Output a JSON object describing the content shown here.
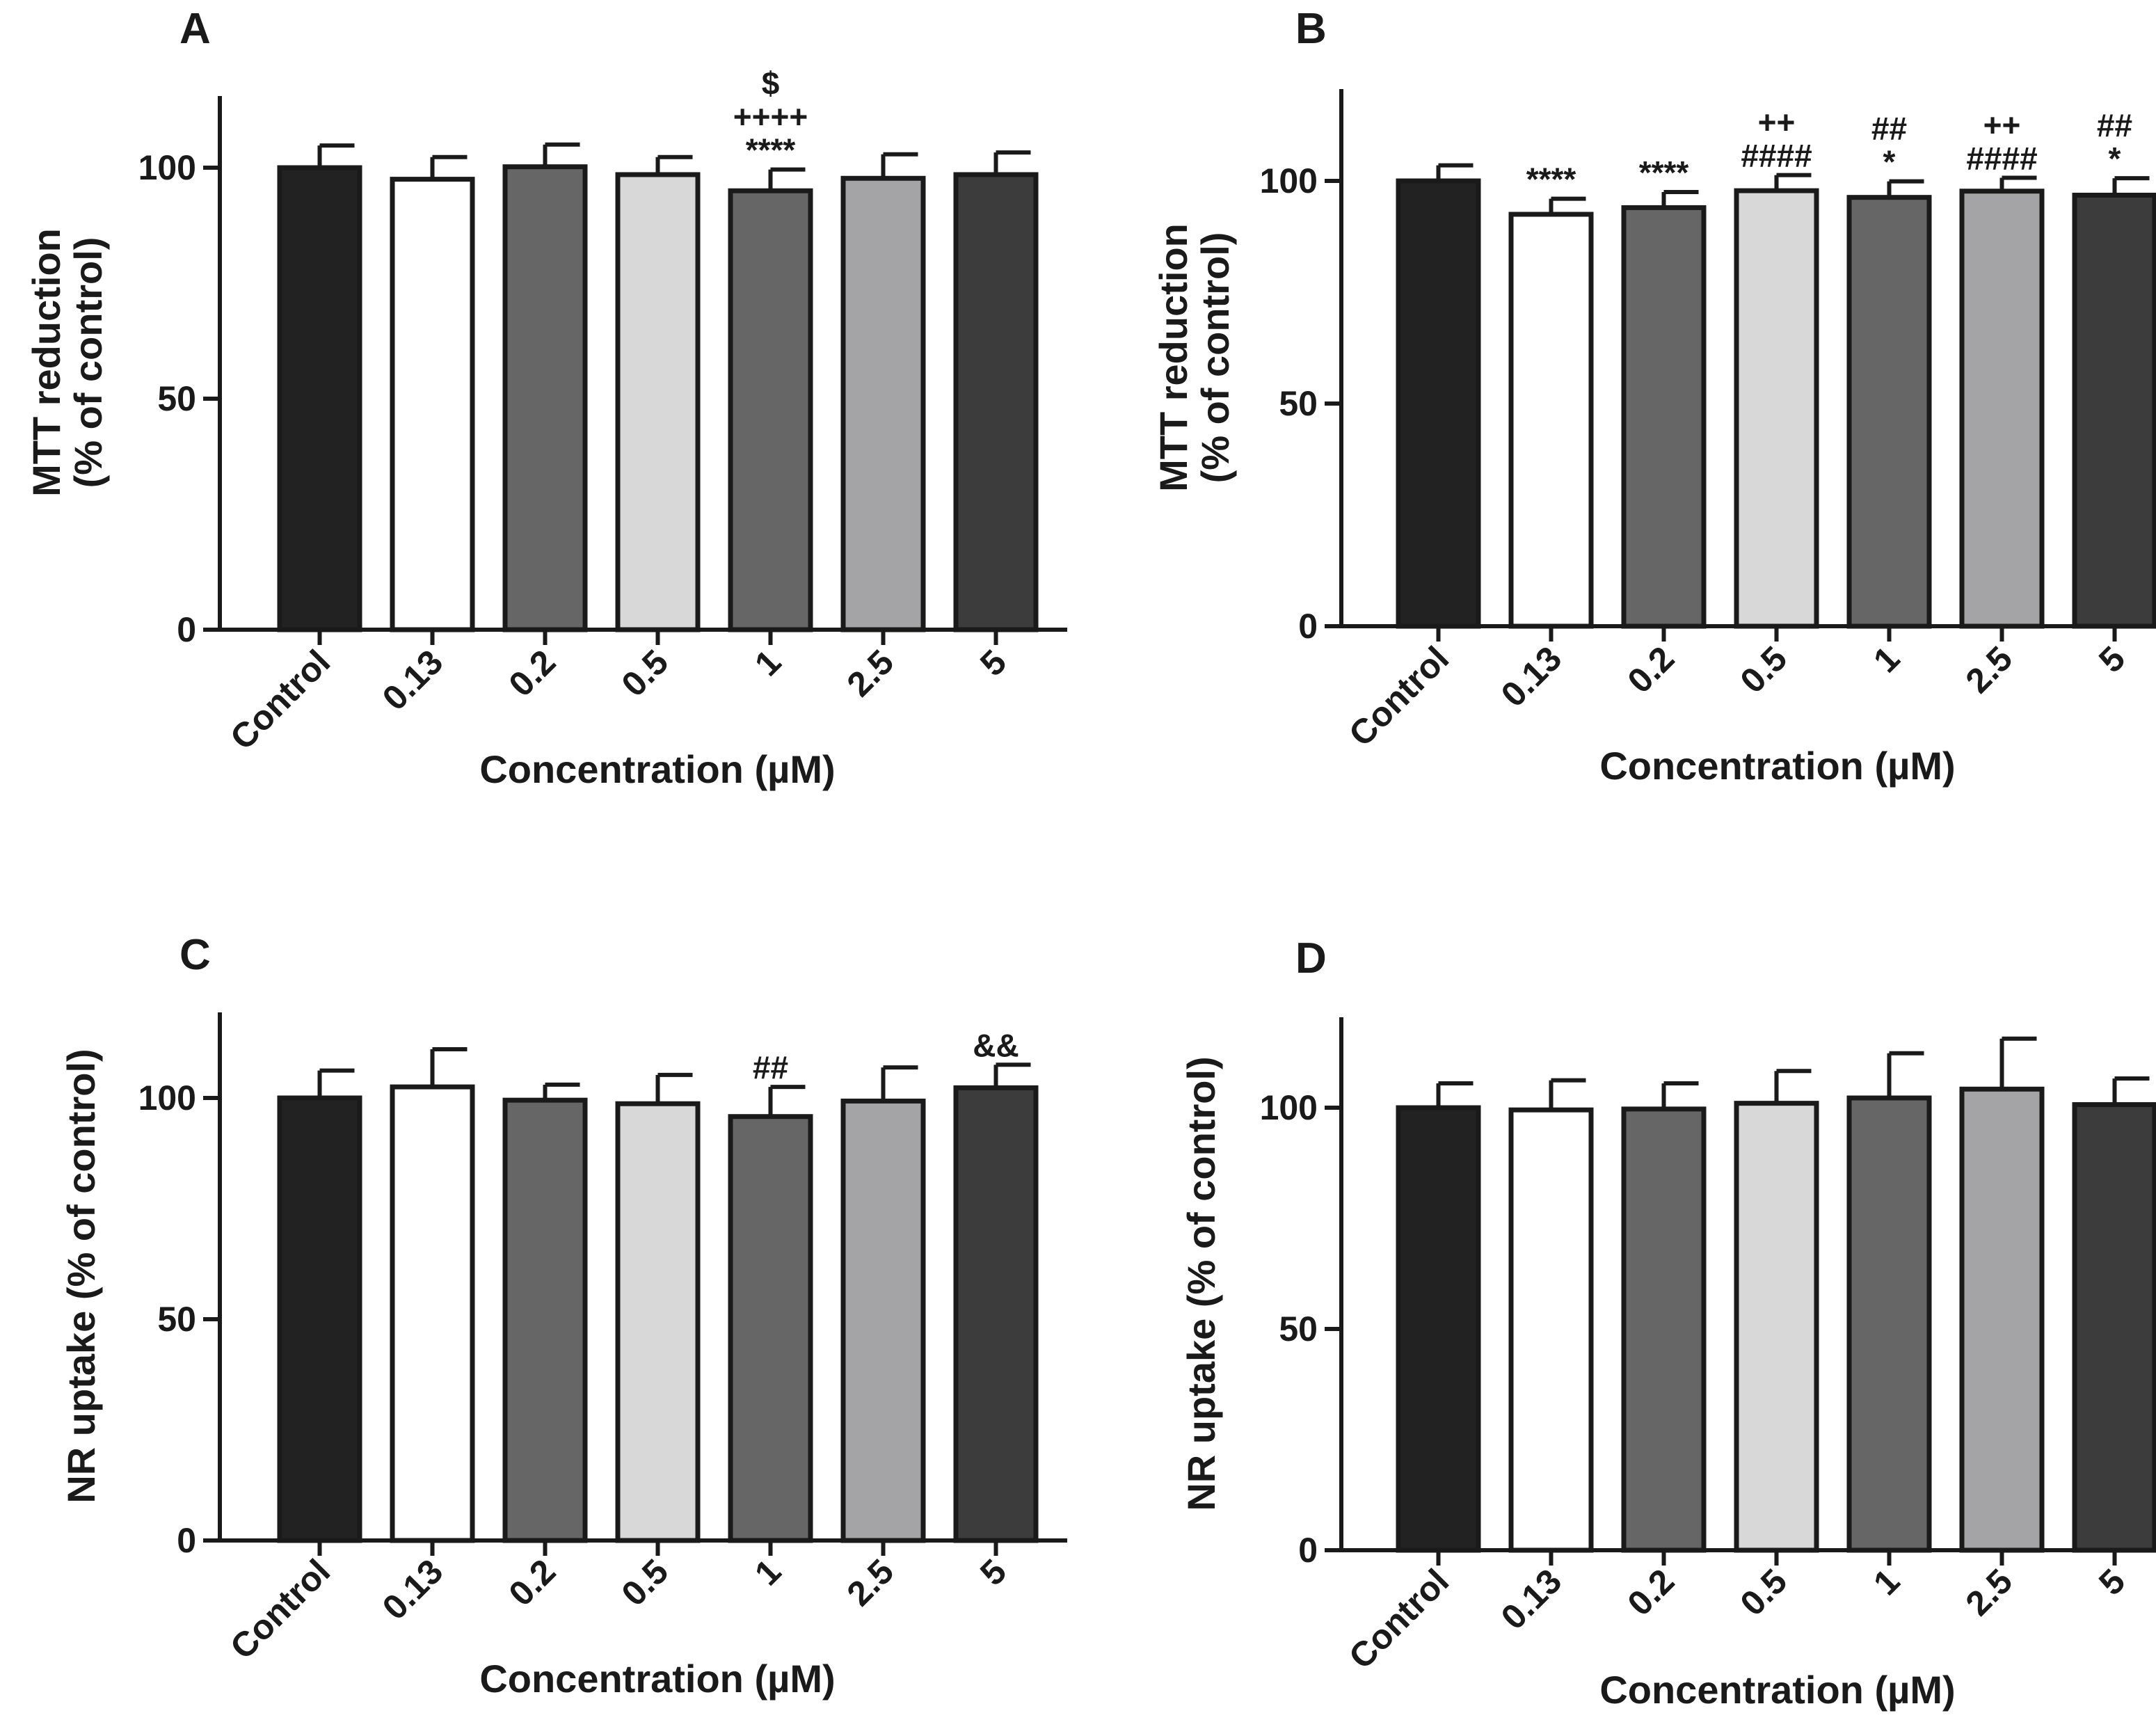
{
  "chart_data": [
    {
      "panel": "A",
      "type": "bar",
      "categories": [
        "Control",
        "0.13",
        "0.2",
        "0.5",
        "1",
        "2.5",
        "5"
      ],
      "values": [
        100,
        97.5,
        100.2,
        98.5,
        95,
        97.7,
        98.5
      ],
      "errors": [
        4.8,
        4.8,
        4.8,
        3.8,
        4.6,
        5.2,
        4.8
      ],
      "colors": [
        "#222222",
        "#ffffff",
        "#666666",
        "#d8d8d8",
        "#666666",
        "#a4a4a6",
        "#3c3c3c"
      ],
      "annotations": [
        [],
        [],
        [],
        [],
        [
          "$",
          "++++",
          "****"
        ],
        [],
        []
      ],
      "xlabel": "Concentration (µM)",
      "ylabel": [
        "MTT reduction",
        "(% of control)"
      ],
      "ylim": [
        0,
        116
      ],
      "yticks": [
        0,
        50,
        100
      ]
    },
    {
      "panel": "B",
      "type": "bar",
      "categories": [
        "Control",
        "0.13",
        "0.2",
        "0.5",
        "1",
        "2.5",
        "5"
      ],
      "values": [
        100,
        92.5,
        94,
        97.8,
        96.3,
        97.7,
        96.8
      ],
      "errors": [
        3.5,
        3.5,
        3.5,
        3.5,
        3.6,
        3.0,
        3.8
      ],
      "colors": [
        "#222222",
        "#ffffff",
        "#666666",
        "#d8d8d8",
        "#666666",
        "#a4a4a6",
        "#3c3c3c"
      ],
      "annotations": [
        [],
        [
          "****"
        ],
        [
          "****"
        ],
        [
          "++",
          "####"
        ],
        [
          "##",
          "*"
        ],
        [
          "++",
          "####"
        ],
        [
          "##",
          "*"
        ]
      ],
      "xlabel": "Concentration (µM)",
      "ylabel": [
        "MTT reduction",
        "(% of control)"
      ],
      "ylim": [
        0,
        120
      ],
      "yticks": [
        0,
        50,
        100
      ]
    },
    {
      "panel": "C",
      "type": "bar",
      "categories": [
        "Control",
        "0.13",
        "0.2",
        "0.5",
        "1",
        "2.5",
        "5"
      ],
      "values": [
        100,
        102.5,
        99.5,
        98.7,
        95.8,
        99.3,
        102.3
      ],
      "errors": [
        6.2,
        8.5,
        3.5,
        6.5,
        6.7,
        7.6,
        5.2
      ],
      "colors": [
        "#222222",
        "#ffffff",
        "#666666",
        "#d8d8d8",
        "#666666",
        "#a4a4a6",
        "#3c3c3c"
      ],
      "annotations": [
        [],
        [],
        [],
        [],
        [
          "##"
        ],
        [],
        [
          "&&"
        ]
      ],
      "xlabel": "Concentration (µM)",
      "ylabel": [
        "NR uptake (% of control)"
      ],
      "ylim": [
        0,
        120
      ],
      "yticks": [
        0,
        50,
        100
      ]
    },
    {
      "panel": "D",
      "type": "bar",
      "categories": [
        "Control",
        "0.13",
        "0.2",
        "0.5",
        "1",
        "2.5",
        "5"
      ],
      "values": [
        100,
        99.5,
        99.7,
        101,
        102.2,
        104.2,
        100.7
      ],
      "errors": [
        5.5,
        6.7,
        5.8,
        7.3,
        10.1,
        11.4,
        5.9
      ],
      "colors": [
        "#222222",
        "#ffffff",
        "#666666",
        "#d8d8d8",
        "#666666",
        "#a4a4a6",
        "#3c3c3c"
      ],
      "annotations": [
        [],
        [],
        [],
        [],
        [],
        [],
        []
      ],
      "xlabel": "Concentration (µM)",
      "ylabel": [
        "NR uptake (% of control)"
      ],
      "ylim": [
        0,
        120
      ],
      "yticks": [
        0,
        50,
        100
      ]
    }
  ]
}
